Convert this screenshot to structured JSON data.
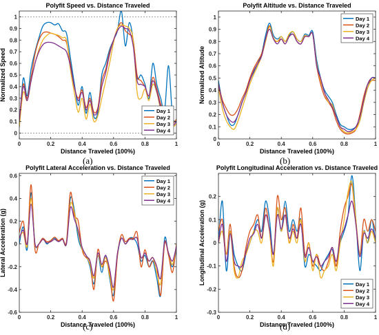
{
  "colors": {
    "day1": "#0072BD",
    "day2": "#D95319",
    "day3": "#EDB120",
    "day4": "#7E2F8E",
    "axis": "#262626",
    "refline": "#8c8c8c"
  },
  "captions": [
    "(a)",
    "(b)",
    "(c)",
    "(d)"
  ],
  "chart_data": [
    {
      "type": "line",
      "title": "Polyfit Speed vs. Distance Traveled",
      "xlabel": "Distance Traveled (100%)",
      "ylabel": "Normalized Speed",
      "xlim": [
        0,
        1
      ],
      "ylim": [
        -0.05,
        1.05
      ],
      "xticks": [
        0,
        0.2,
        0.4,
        0.6,
        0.8,
        1
      ],
      "xtick_labels": [
        "0",
        "0.2",
        "0.4",
        "0.6",
        "0.8",
        "1"
      ],
      "yticks": [
        0,
        0.1,
        0.2,
        0.3,
        0.4,
        0.5,
        0.6,
        0.7,
        0.8,
        0.9,
        1
      ],
      "ytick_labels": [
        "0",
        "0.1",
        "0.2",
        "0.3",
        "0.4",
        "0.5",
        "0.6",
        "0.7",
        "0.8",
        "0.9",
        "1"
      ],
      "reference_lines": [
        0,
        1
      ],
      "legend_position": "bottom-right",
      "x": [
        0,
        0.025,
        0.05,
        0.075,
        0.1,
        0.125,
        0.15,
        0.175,
        0.2,
        0.225,
        0.25,
        0.275,
        0.3,
        0.325,
        0.35,
        0.375,
        0.4,
        0.425,
        0.45,
        0.475,
        0.5,
        0.525,
        0.55,
        0.575,
        0.6,
        0.625,
        0.65,
        0.675,
        0.7,
        0.725,
        0.75,
        0.775,
        0.8,
        0.825,
        0.85,
        0.875,
        0.9,
        0.925,
        0.95,
        0.975,
        1
      ],
      "series": [
        {
          "name": "Day 1",
          "color_key": "day1",
          "values": [
            0.05,
            0.47,
            0.32,
            0.55,
            0.7,
            0.82,
            0.92,
            0.95,
            0.95,
            0.93,
            0.94,
            0.88,
            0.86,
            0.65,
            0.43,
            0.24,
            0.4,
            0.17,
            0.35,
            0.14,
            0.18,
            0.5,
            0.6,
            0.72,
            0.8,
            0.88,
            1.05,
            0.75,
            0.95,
            0.8,
            0.48,
            0.5,
            0.42,
            0.3,
            0.6,
            0.42,
            0.3,
            0.2,
            0.58,
            0.15,
            0.1
          ]
        },
        {
          "name": "Day 2",
          "color_key": "day2",
          "values": [
            0.1,
            0.42,
            0.3,
            0.48,
            0.68,
            0.8,
            0.86,
            0.87,
            0.86,
            0.85,
            0.83,
            0.8,
            0.78,
            0.6,
            0.4,
            0.3,
            0.37,
            0.22,
            0.3,
            0.18,
            0.22,
            0.45,
            0.55,
            0.7,
            0.8,
            0.9,
            0.95,
            0.88,
            0.85,
            0.8,
            0.5,
            0.45,
            0.4,
            0.32,
            0.48,
            0.38,
            0.25,
            0.15,
            0.1,
            0.08,
            0.12
          ]
        },
        {
          "name": "Day 3",
          "color_key": "day3",
          "values": [
            0.05,
            0.35,
            0.28,
            0.45,
            0.6,
            0.72,
            0.8,
            0.84,
            0.86,
            0.85,
            0.84,
            0.82,
            0.8,
            0.55,
            0.35,
            0.18,
            0.3,
            0.12,
            0.25,
            0.1,
            0.15,
            0.3,
            0.45,
            0.6,
            0.78,
            0.9,
            0.93,
            0.92,
            0.9,
            0.8,
            0.35,
            0.3,
            0.38,
            0.28,
            0.42,
            0.35,
            0.2,
            0.1,
            0.06,
            0.05,
            0.08
          ]
        },
        {
          "name": "Day 4",
          "color_key": "day4",
          "values": [
            0.1,
            0.4,
            0.28,
            0.45,
            0.6,
            0.7,
            0.76,
            0.78,
            0.78,
            0.77,
            0.75,
            0.73,
            0.7,
            0.58,
            0.4,
            0.28,
            0.35,
            0.2,
            0.28,
            0.16,
            0.2,
            0.4,
            0.52,
            0.68,
            0.8,
            0.88,
            0.92,
            0.9,
            0.88,
            0.75,
            0.45,
            0.42,
            0.4,
            0.32,
            0.45,
            0.36,
            0.22,
            0.12,
            0.08,
            0.06,
            0.1
          ]
        }
      ]
    },
    {
      "type": "line",
      "title": "Polyfit Altitude vs. Distance Traveled",
      "xlabel": "Distance Traveled (100%)",
      "ylabel": "Normalized Altitude",
      "xlim": [
        0,
        1
      ],
      "ylim": [
        0,
        1.05
      ],
      "xticks": [
        0,
        0.2,
        0.4,
        0.6,
        0.8,
        1
      ],
      "xtick_labels": [
        "0",
        "0.2",
        "0.4",
        "0.6",
        "0.8",
        "1"
      ],
      "yticks": [
        0,
        0.1,
        0.2,
        0.3,
        0.4,
        0.5,
        0.6,
        0.7,
        0.8,
        0.9,
        1
      ],
      "ytick_labels": [
        "0",
        "0.1",
        "0.2",
        "0.3",
        "0.4",
        "0.5",
        "0.6",
        "0.7",
        "0.8",
        "0.9",
        "1"
      ],
      "reference_lines": [],
      "legend_position": "top-right",
      "x": [
        0,
        0.025,
        0.05,
        0.075,
        0.1,
        0.125,
        0.15,
        0.175,
        0.2,
        0.225,
        0.25,
        0.275,
        0.3,
        0.325,
        0.35,
        0.375,
        0.4,
        0.425,
        0.45,
        0.475,
        0.5,
        0.525,
        0.55,
        0.575,
        0.6,
        0.625,
        0.65,
        0.675,
        0.7,
        0.725,
        0.75,
        0.775,
        0.8,
        0.825,
        0.85,
        0.875,
        0.9,
        0.925,
        0.95,
        0.975,
        1
      ],
      "series": [
        {
          "name": "Day 1",
          "color_key": "day1",
          "values": [
            0.48,
            0.3,
            0.2,
            0.12,
            0.12,
            0.2,
            0.3,
            0.38,
            0.48,
            0.55,
            0.62,
            0.7,
            0.85,
            0.95,
            0.85,
            0.82,
            0.84,
            0.8,
            0.85,
            0.88,
            0.82,
            0.8,
            0.86,
            0.85,
            0.88,
            0.65,
            0.5,
            0.4,
            0.35,
            0.3,
            0.2,
            0.12,
            0.1,
            0.08,
            0.08,
            0.1,
            0.15,
            0.3,
            0.42,
            0.5,
            0.5
          ]
        },
        {
          "name": "Day 2",
          "color_key": "day2",
          "values": [
            0.45,
            0.32,
            0.25,
            0.2,
            0.2,
            0.25,
            0.33,
            0.4,
            0.5,
            0.58,
            0.64,
            0.7,
            0.82,
            0.93,
            0.82,
            0.8,
            0.82,
            0.78,
            0.84,
            0.86,
            0.8,
            0.78,
            0.84,
            0.84,
            0.86,
            0.6,
            0.45,
            0.35,
            0.3,
            0.25,
            0.15,
            0.08,
            0.05,
            0.04,
            0.05,
            0.08,
            0.2,
            0.35,
            0.45,
            0.48,
            0.48
          ]
        },
        {
          "name": "Day 3",
          "color_key": "day3",
          "values": [
            0.42,
            0.25,
            0.15,
            0.1,
            0.08,
            0.15,
            0.25,
            0.35,
            0.45,
            0.53,
            0.6,
            0.68,
            0.8,
            0.92,
            0.83,
            0.8,
            0.84,
            0.8,
            0.86,
            0.88,
            0.82,
            0.8,
            0.85,
            0.84,
            0.86,
            0.62,
            0.48,
            0.38,
            0.3,
            0.28,
            0.18,
            0.1,
            0.06,
            0.05,
            0.06,
            0.08,
            0.15,
            0.3,
            0.42,
            0.48,
            0.5
          ]
        },
        {
          "name": "Day 4",
          "color_key": "day4",
          "values": [
            0.45,
            0.3,
            0.2,
            0.15,
            0.14,
            0.2,
            0.3,
            0.38,
            0.48,
            0.56,
            0.62,
            0.68,
            0.82,
            0.9,
            0.82,
            0.78,
            0.82,
            0.78,
            0.84,
            0.86,
            0.8,
            0.78,
            0.84,
            0.84,
            0.86,
            0.6,
            0.5,
            0.38,
            0.32,
            0.26,
            0.18,
            0.1,
            0.08,
            0.06,
            0.07,
            0.1,
            0.18,
            0.32,
            0.45,
            0.5,
            0.5
          ]
        }
      ]
    },
    {
      "type": "line",
      "title": "Polyfit Lateral Acceleration vs. Distance Traveled",
      "xlabel": "Distance Traveled (100%)",
      "ylabel": "Lateral Acceleration (g)",
      "xlim": [
        0,
        1
      ],
      "ylim": [
        -0.6,
        0.62
      ],
      "xticks": [
        0,
        0.2,
        0.4,
        0.6,
        0.8,
        1
      ],
      "xtick_labels": [
        "0",
        "0.2",
        "0.4",
        "0.6",
        "0.8",
        "1"
      ],
      "yticks": [
        -0.6,
        -0.4,
        -0.2,
        0,
        0.2,
        0.4,
        0.6
      ],
      "ytick_labels": [
        "-0.6",
        "-0.4",
        "-0.2",
        "0",
        "0.2",
        "0.4",
        "0.6"
      ],
      "reference_lines": [],
      "legend_position": "top-right",
      "x": [
        0,
        0.025,
        0.05,
        0.075,
        0.1,
        0.125,
        0.15,
        0.175,
        0.2,
        0.225,
        0.25,
        0.275,
        0.3,
        0.325,
        0.35,
        0.375,
        0.4,
        0.425,
        0.45,
        0.475,
        0.5,
        0.525,
        0.55,
        0.575,
        0.6,
        0.625,
        0.65,
        0.675,
        0.7,
        0.725,
        0.75,
        0.775,
        0.8,
        0.825,
        0.85,
        0.875,
        0.9,
        0.925,
        0.95,
        0.975,
        1
      ],
      "series": [
        {
          "name": "Day 1",
          "color_key": "day1",
          "values": [
            0.0,
            0.15,
            -0.05,
            0.45,
            0.0,
            0.0,
            0.05,
            0.0,
            0.03,
            0.05,
            0.02,
            0.05,
            0.0,
            0.4,
            0.3,
            0.05,
            -0.05,
            -0.1,
            -0.2,
            -0.35,
            -0.1,
            -0.25,
            -0.1,
            -0.3,
            -0.45,
            -0.1,
            0.05,
            0.0,
            0.05,
            0.05,
            0.0,
            -0.15,
            -0.1,
            -0.2,
            -0.15,
            -0.3,
            -0.45,
            0.05,
            -0.1,
            -0.2,
            -0.05
          ]
        },
        {
          "name": "Day 2",
          "color_key": "day2",
          "values": [
            0.1,
            0.2,
            0.0,
            0.52,
            -0.05,
            0.0,
            0.05,
            0.02,
            0.03,
            0.06,
            0.03,
            0.05,
            0.02,
            0.45,
            0.25,
            0.2,
            -0.05,
            -0.12,
            -0.15,
            -0.4,
            -0.05,
            -0.2,
            -0.15,
            -0.25,
            -0.5,
            -0.1,
            0.08,
            0.02,
            0.05,
            0.05,
            0.1,
            -0.2,
            -0.05,
            -0.2,
            -0.15,
            -0.2,
            -0.45,
            0.0,
            -0.1,
            -0.25,
            0.0
          ]
        },
        {
          "name": "Day 3",
          "color_key": "day3",
          "values": [
            0.05,
            0.1,
            -0.02,
            0.4,
            0.0,
            0.0,
            0.04,
            0.01,
            0.02,
            0.04,
            0.02,
            0.04,
            0.0,
            0.35,
            0.28,
            0.1,
            -0.05,
            -0.1,
            -0.18,
            -0.3,
            -0.1,
            -0.2,
            -0.12,
            -0.28,
            -0.4,
            -0.08,
            0.05,
            0.0,
            0.04,
            0.04,
            0.05,
            -0.12,
            -0.08,
            -0.15,
            -0.12,
            -0.25,
            -0.35,
            0.02,
            -0.08,
            -0.18,
            -0.02
          ]
        },
        {
          "name": "Day 4",
          "color_key": "day4",
          "values": [
            0.05,
            0.12,
            0.0,
            0.35,
            0.0,
            0.0,
            0.04,
            0.01,
            0.02,
            0.04,
            0.02,
            0.04,
            0.0,
            0.32,
            0.22,
            0.12,
            -0.03,
            -0.1,
            -0.15,
            -0.28,
            -0.08,
            -0.18,
            -0.1,
            -0.22,
            -0.38,
            -0.08,
            0.05,
            0.0,
            0.04,
            0.04,
            0.05,
            -0.12,
            -0.08,
            -0.15,
            -0.12,
            -0.2,
            -0.3,
            0.02,
            -0.08,
            -0.15,
            -0.02
          ]
        }
      ]
    },
    {
      "type": "line",
      "title": "Polyfit Longitudinal Acceleration vs. Distance Traveled",
      "xlabel": "Distance Traveled (100%)",
      "ylabel": "Longitudinal Acceleration (g)",
      "xlim": [
        0,
        1
      ],
      "ylim": [
        -0.3,
        0.3
      ],
      "xticks": [
        0,
        0.2,
        0.4,
        0.6,
        0.8,
        1
      ],
      "xtick_labels": [
        "0",
        "0.2",
        "0.4",
        "0.6",
        "0.8",
        "1"
      ],
      "yticks": [
        -0.3,
        -0.2,
        -0.1,
        0,
        0.1,
        0.2
      ],
      "ytick_labels": [
        "-0.3",
        "-0.2",
        "-0.1",
        "0",
        "0.1",
        "0.2"
      ],
      "reference_lines": [],
      "legend_position": "bottom-right",
      "x": [
        0,
        0.025,
        0.05,
        0.075,
        0.1,
        0.125,
        0.15,
        0.175,
        0.2,
        0.225,
        0.25,
        0.275,
        0.3,
        0.325,
        0.35,
        0.375,
        0.4,
        0.425,
        0.45,
        0.475,
        0.5,
        0.525,
        0.55,
        0.575,
        0.6,
        0.625,
        0.65,
        0.675,
        0.7,
        0.725,
        0.75,
        0.775,
        0.8,
        0.825,
        0.85,
        0.875,
        0.9,
        0.925,
        0.95,
        0.975,
        1
      ],
      "series": [
        {
          "name": "Day 1",
          "color_key": "day1",
          "values": [
            0.0,
            0.18,
            -0.12,
            0.05,
            -0.05,
            -0.1,
            -0.12,
            -0.05,
            0.0,
            0.05,
            0.1,
            0.05,
            0.18,
            0.1,
            -0.05,
            0.15,
            0.05,
            0.18,
            0.05,
            0.1,
            0.05,
            0.1,
            -0.1,
            -0.05,
            -0.08,
            -0.1,
            -0.12,
            -0.08,
            -0.05,
            -0.03,
            -0.1,
            0.0,
            0.05,
            0.12,
            0.29,
            0.1,
            -0.12,
            0.05,
            0.0,
            0.1,
            0.0
          ]
        },
        {
          "name": "Day 2",
          "color_key": "day2",
          "values": [
            0.05,
            0.1,
            -0.05,
            0.08,
            -0.1,
            -0.15,
            -0.12,
            -0.02,
            0.05,
            0.08,
            0.12,
            0.02,
            0.15,
            0.05,
            -0.08,
            0.2,
            0.1,
            0.15,
            0.0,
            0.08,
            0.02,
            0.15,
            -0.05,
            0.0,
            -0.1,
            -0.05,
            -0.1,
            -0.12,
            -0.08,
            -0.02,
            -0.1,
            0.05,
            0.15,
            0.2,
            0.25,
            0.08,
            -0.05,
            0.1,
            0.05,
            0.1,
            0.05
          ]
        },
        {
          "name": "Day 3",
          "color_key": "day3",
          "values": [
            0.0,
            0.05,
            -0.05,
            0.05,
            -0.12,
            -0.15,
            -0.08,
            -0.05,
            0.0,
            0.05,
            0.05,
            0.0,
            0.12,
            0.05,
            -0.1,
            0.15,
            0.05,
            0.12,
            0.0,
            0.05,
            0.0,
            0.1,
            -0.08,
            0.0,
            -0.12,
            -0.05,
            -0.15,
            -0.12,
            -0.1,
            -0.05,
            -0.12,
            0.0,
            0.1,
            0.22,
            0.26,
            0.1,
            -0.05,
            0.05,
            0.0,
            0.05,
            0.0
          ]
        },
        {
          "name": "Day 4",
          "color_key": "day4",
          "values": [
            0.0,
            0.08,
            -0.08,
            0.04,
            -0.08,
            -0.1,
            -0.1,
            -0.04,
            0.02,
            0.04,
            0.08,
            0.02,
            0.12,
            0.06,
            -0.05,
            0.12,
            0.06,
            0.12,
            0.02,
            0.06,
            0.02,
            0.08,
            -0.06,
            -0.02,
            -0.08,
            -0.06,
            -0.1,
            -0.08,
            -0.06,
            -0.02,
            -0.08,
            0.02,
            0.06,
            0.12,
            0.18,
            0.08,
            -0.06,
            0.04,
            0.02,
            0.06,
            0.02
          ]
        }
      ]
    }
  ]
}
